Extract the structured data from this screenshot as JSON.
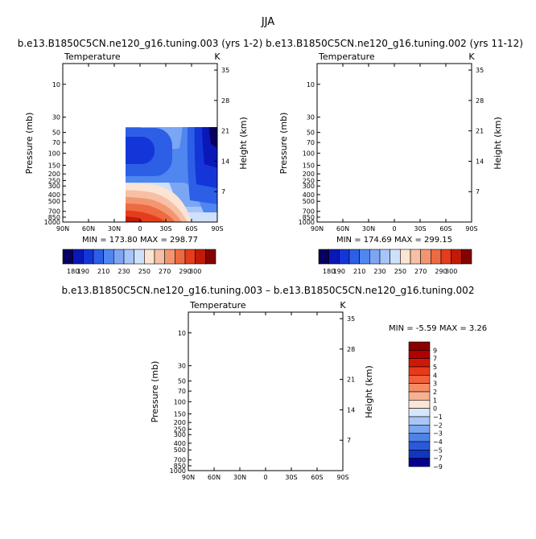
{
  "page_title": "JJA",
  "panels": [
    {
      "title": "b.e13.B1850C5CN.ne120_g16.tuning.003 (yrs 1-2)",
      "variable": "Temperature",
      "units": "K",
      "ylabel_left": "Pressure (mb)",
      "ylabel_right": "Height (km)",
      "stats": "MIN = 173.80   MAX = 298.77"
    },
    {
      "title": "b.e13.B1850C5CN.ne120_g16.tuning.002 (yrs 11-12)",
      "variable": "Temperature",
      "units": "K",
      "ylabel_left": "Pressure (mb)",
      "ylabel_right": "Height (km)",
      "stats": "MIN = 174.69   MAX = 299.15"
    },
    {
      "title": "b.e13.B1850C5CN.ne120_g16.tuning.003 – b.e13.B1850C5CN.ne120_g16.tuning.002",
      "variable": "Temperature",
      "units": "K",
      "ylabel_left": "Pressure (mb)",
      "ylabel_right": "Height (km)",
      "stats": "MIN =   -5.59   MAX =    3.26"
    }
  ],
  "chart_data": [
    {
      "type": "heatmap",
      "title": "b.e13.B1850C5CN.ne120_g16.tuning.003 (yrs 1-2)",
      "x_ticks": [
        "90N",
        "60N",
        "30N",
        "0",
        "30S",
        "60S",
        "90S"
      ],
      "y_ticks_pressure": [
        "10",
        "30",
        "50",
        "70",
        "100",
        "150",
        "200",
        "250",
        "300",
        "400",
        "500",
        "700",
        "850",
        "1000"
      ],
      "y_ticks_height": [
        "35",
        "28",
        "21",
        "14",
        "7"
      ],
      "ylim_pressure": [
        5,
        1000
      ],
      "min": 173.8,
      "max": 298.77,
      "colorbar_levels": [
        "180",
        "190",
        "200",
        "210",
        "220",
        "230",
        "240",
        "250",
        "260",
        "270",
        "280",
        "290",
        "300"
      ],
      "colorbar_labels": [
        "180",
        "190",
        "210",
        "230",
        "250",
        "270",
        "290",
        "300"
      ]
    },
    {
      "type": "heatmap",
      "title": "b.e13.B1850C5CN.ne120_g16.tuning.002 (yrs 11-12)",
      "x_ticks": [
        "90N",
        "60N",
        "30N",
        "0",
        "30S",
        "60S",
        "90S"
      ],
      "y_ticks_pressure": [
        "10",
        "30",
        "50",
        "70",
        "100",
        "150",
        "200",
        "250",
        "300",
        "400",
        "500",
        "700",
        "850",
        "1000"
      ],
      "y_ticks_height": [
        "35",
        "28",
        "21",
        "14",
        "7"
      ],
      "ylim_pressure": [
        5,
        1000
      ],
      "min": 174.69,
      "max": 299.15,
      "colorbar_levels": [
        "180",
        "190",
        "200",
        "210",
        "220",
        "230",
        "240",
        "250",
        "260",
        "270",
        "280",
        "290",
        "300"
      ],
      "colorbar_labels": [
        "180",
        "190",
        "210",
        "230",
        "250",
        "270",
        "290",
        "300"
      ]
    },
    {
      "type": "heatmap",
      "title": "b.e13.B1850C5CN.ne120_g16.tuning.003 – b.e13.B1850C5CN.ne120_g16.tuning.002",
      "x_ticks": [
        "90N",
        "60N",
        "30N",
        "0",
        "30S",
        "60S",
        "90S"
      ],
      "y_ticks_pressure": [
        "10",
        "30",
        "50",
        "70",
        "100",
        "150",
        "200",
        "250",
        "300",
        "400",
        "500",
        "700",
        "850",
        "1000"
      ],
      "y_ticks_height": [
        "35",
        "28",
        "21",
        "14",
        "7"
      ],
      "ylim_pressure": [
        5,
        1000
      ],
      "min": -5.59,
      "max": 3.26,
      "colorbar_labels": [
        "9",
        "7",
        "5",
        "4",
        "3",
        "2",
        "1",
        "0",
        "−1",
        "−2",
        "−3",
        "−4",
        "−5",
        "−7",
        "−9"
      ]
    }
  ],
  "colors": {
    "abs_scale": [
      "#08005e",
      "#0a18b8",
      "#1436d8",
      "#2c5fe6",
      "#4f86ef",
      "#7ba6f4",
      "#a7c5f8",
      "#cfe0fb",
      "#fbe4d3",
      "#f7c0a4",
      "#f39670",
      "#ed6a42",
      "#e53d1c",
      "#c11b08",
      "#820400"
    ],
    "diff_scale": [
      "#880000",
      "#b00000",
      "#d11808",
      "#e83a1a",
      "#f2603c",
      "#f58c64",
      "#f8b190",
      "#fce5d4",
      "#d6e6fb",
      "#a9c7f6",
      "#7ba6f0",
      "#4f82e8",
      "#2a5ad8",
      "#1236c0",
      "#03008f"
    ]
  }
}
